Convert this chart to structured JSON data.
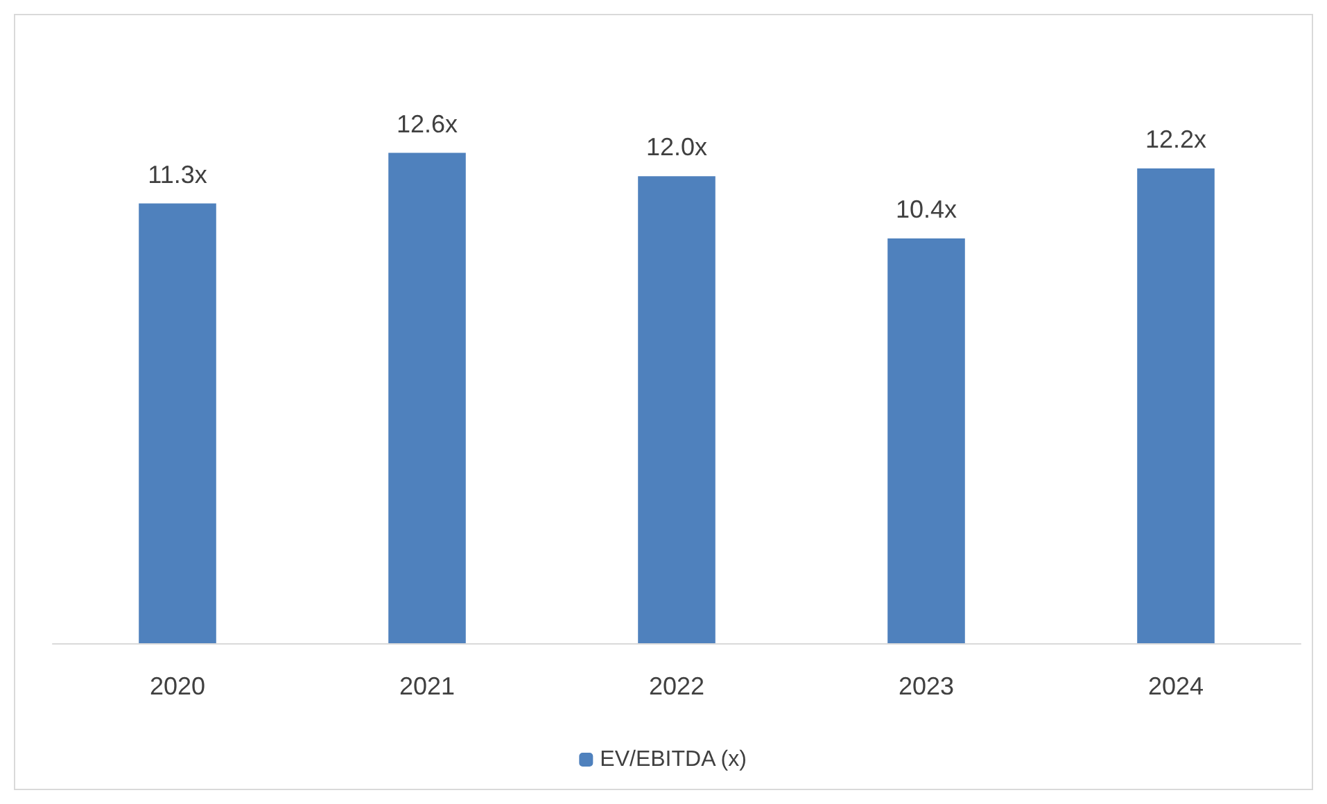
{
  "chart_data": {
    "type": "bar",
    "categories": [
      "2020",
      "2021",
      "2022",
      "2023",
      "2024"
    ],
    "series": [
      {
        "name": "EV/EBITDA (x)",
        "color": "#4f81bd",
        "values": [
          11.3,
          12.6,
          12.0,
          10.4,
          12.2
        ],
        "value_labels": [
          "11.3x",
          "12.6x",
          "12.0x",
          "10.4x",
          "12.2x"
        ]
      }
    ],
    "legend": "bottom",
    "grid": false
  }
}
